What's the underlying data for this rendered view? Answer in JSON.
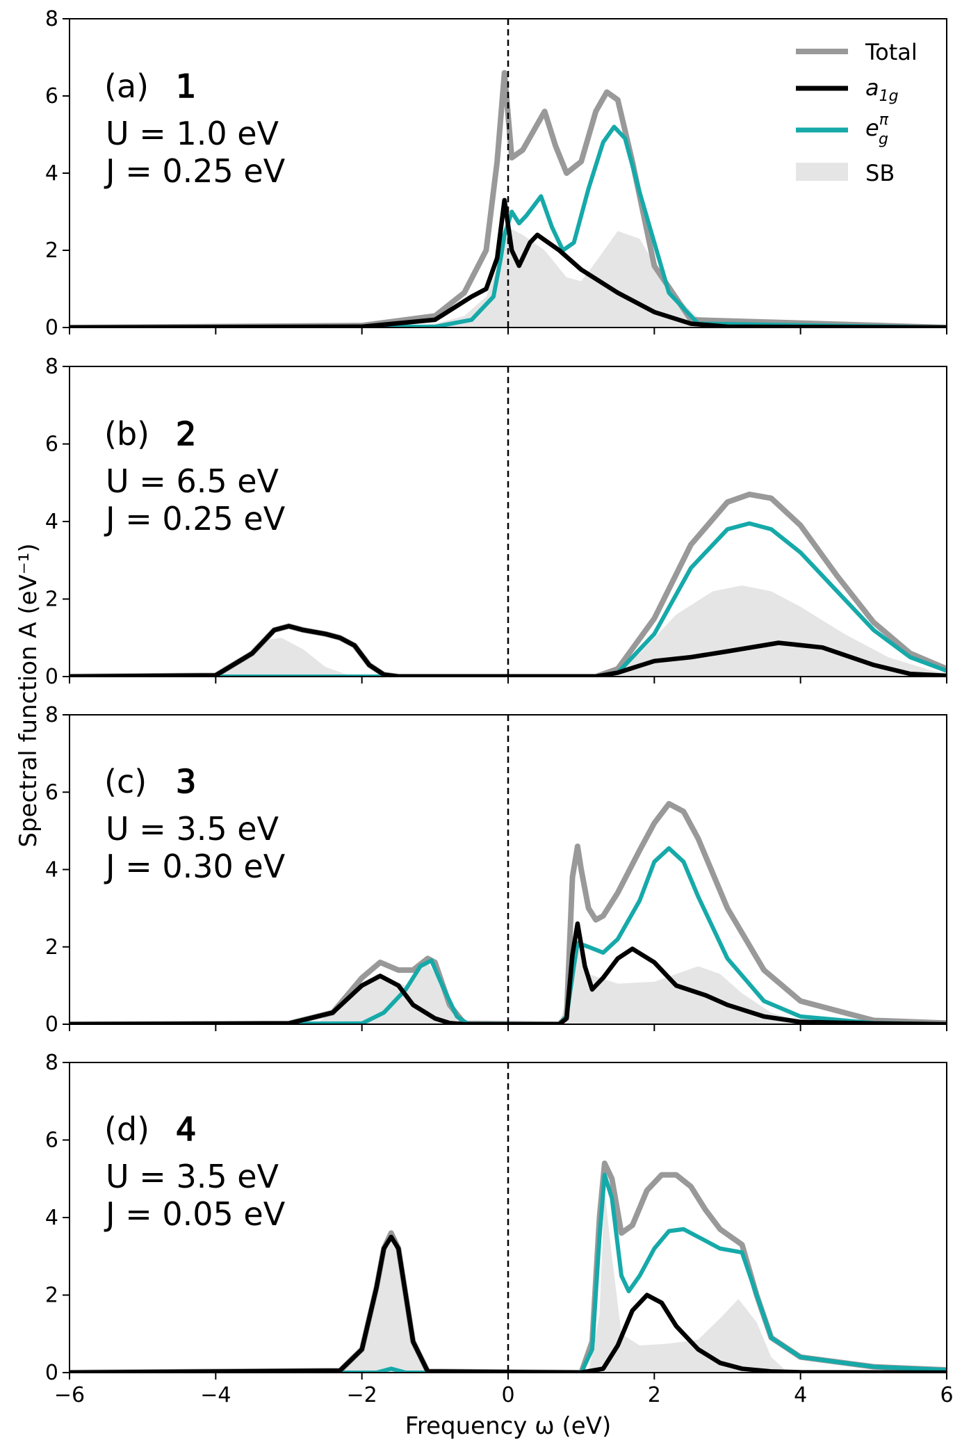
{
  "figure": {
    "xlabel": "Frequency ω (eV)",
    "ylabel": "Spectral function A (eV⁻¹)"
  },
  "legend": {
    "placement": "top-right",
    "items": [
      {
        "label": "Total",
        "color": "#999999",
        "kind": "line"
      },
      {
        "label": "a1g",
        "color": "#000000",
        "kind": "line"
      },
      {
        "label": "eπg",
        "color": "#16a9a9",
        "kind": "line"
      },
      {
        "label": "SB",
        "color": "#e5e5e5",
        "kind": "patch"
      }
    ]
  },
  "panels": [
    {
      "tag": "(a)",
      "marker": "1",
      "U_text": "U = 1.0 eV",
      "J_text": "J = 0.25 eV"
    },
    {
      "tag": "(b)",
      "marker": "2",
      "U_text": "U = 6.5 eV",
      "J_text": "J = 0.25 eV"
    },
    {
      "tag": "(c)",
      "marker": "3",
      "U_text": "U = 3.5 eV",
      "J_text": "J = 0.30 eV"
    },
    {
      "tag": "(d)",
      "marker": "4",
      "U_text": "U = 3.5 eV",
      "J_text": "J = 0.05 eV"
    }
  ],
  "chart_data": [
    {
      "type": "line",
      "title": "",
      "xlabel": "Frequency ω (eV)",
      "ylabel": "Spectral function A (eV⁻¹)",
      "xlim": [
        -6,
        6
      ],
      "ylim": [
        0,
        8
      ],
      "xticks": [
        -6,
        -4,
        -2,
        0,
        2,
        4,
        6
      ],
      "yticks": [
        0,
        2,
        4,
        6,
        8
      ],
      "vline_x": 0,
      "series": [
        {
          "name": "Total",
          "x": [
            -6,
            -2,
            -1,
            -0.6,
            -0.3,
            -0.15,
            -0.05,
            0.05,
            0.2,
            0.35,
            0.5,
            0.65,
            0.8,
            1.0,
            1.2,
            1.35,
            1.5,
            1.7,
            2.0,
            2.5,
            6
          ],
          "y": [
            0,
            0.05,
            0.3,
            0.9,
            2.0,
            4.3,
            6.6,
            4.4,
            4.6,
            5.1,
            5.6,
            4.7,
            4.0,
            4.3,
            5.6,
            6.1,
            5.9,
            4.3,
            1.6,
            0.2,
            0
          ]
        },
        {
          "name": "a1g",
          "x": [
            -6,
            -2,
            -1,
            -0.5,
            -0.3,
            -0.15,
            -0.05,
            0.05,
            0.15,
            0.3,
            0.4,
            0.7,
            1.0,
            1.5,
            2.0,
            2.5,
            3.0,
            6
          ],
          "y": [
            0,
            0.02,
            0.2,
            0.8,
            1.0,
            1.8,
            3.3,
            2.0,
            1.6,
            2.2,
            2.4,
            2.0,
            1.5,
            0.9,
            0.4,
            0.1,
            0.02,
            0
          ],
          "color": "#000000"
        },
        {
          "name": "eπg",
          "x": [
            -6,
            -1,
            -0.5,
            -0.2,
            -0.1,
            -0.05,
            0.05,
            0.15,
            0.25,
            0.45,
            0.6,
            0.75,
            0.9,
            1.1,
            1.3,
            1.45,
            1.6,
            1.8,
            2.2,
            2.6,
            6
          ],
          "y": [
            0,
            0.02,
            0.2,
            0.8,
            1.8,
            2.4,
            3.0,
            2.7,
            2.9,
            3.4,
            2.6,
            2.0,
            2.2,
            3.6,
            4.8,
            5.2,
            4.9,
            3.5,
            0.9,
            0.1,
            0
          ]
        },
        {
          "name": "SB",
          "x": [
            -6,
            -1.5,
            -1,
            -0.6,
            -0.3,
            -0.1,
            0,
            0.2,
            0.5,
            0.8,
            1.0,
            1.2,
            1.5,
            1.8,
            2.2,
            2.6,
            3.0,
            6
          ],
          "y": [
            0,
            0.02,
            0.1,
            0.3,
            0.8,
            1.8,
            2.6,
            2.4,
            2.0,
            1.3,
            1.2,
            1.7,
            2.5,
            2.3,
            1.0,
            0.25,
            0.03,
            0
          ]
        }
      ]
    },
    {
      "type": "line",
      "title": "",
      "xlim": [
        -6,
        6
      ],
      "ylim": [
        0,
        8
      ],
      "xticks": [
        -6,
        -4,
        -2,
        0,
        2,
        4,
        6
      ],
      "yticks": [
        0,
        2,
        4,
        6,
        8
      ],
      "vline_x": 0,
      "series": [
        {
          "name": "Total",
          "x": [
            -6,
            -4,
            -3.5,
            -3.2,
            -3.0,
            -2.8,
            -2.5,
            -2.3,
            -2.1,
            -1.9,
            -1.7,
            -1.5,
            1.2,
            1.5,
            2.0,
            2.5,
            3.0,
            3.3,
            3.6,
            4.0,
            4.5,
            5.0,
            5.5,
            6
          ],
          "y": [
            0,
            0.03,
            0.6,
            1.2,
            1.3,
            1.2,
            1.1,
            1.0,
            0.8,
            0.3,
            0.05,
            0,
            0,
            0.2,
            1.5,
            3.4,
            4.5,
            4.7,
            4.6,
            3.9,
            2.6,
            1.4,
            0.6,
            0.2
          ]
        },
        {
          "name": "a1g",
          "x": [
            -6,
            -4,
            -3.5,
            -3.2,
            -3.0,
            -2.8,
            -2.5,
            -2.3,
            -2.1,
            -1.9,
            -1.7,
            -1.5,
            1.2,
            1.5,
            2.0,
            2.5,
            3.0,
            3.7,
            4.3,
            5.0,
            5.5,
            6
          ],
          "y": [
            0,
            0.03,
            0.6,
            1.2,
            1.3,
            1.2,
            1.1,
            1.0,
            0.8,
            0.3,
            0.05,
            0,
            0,
            0.1,
            0.4,
            0.5,
            0.65,
            0.87,
            0.75,
            0.3,
            0.07,
            0.02
          ]
        },
        {
          "name": "eπg",
          "x": [
            -6,
            1.2,
            1.5,
            2.0,
            2.5,
            3.0,
            3.3,
            3.6,
            4.0,
            4.5,
            5.0,
            5.5,
            6
          ],
          "y": [
            0,
            0,
            0.1,
            1.1,
            2.8,
            3.8,
            3.95,
            3.8,
            3.2,
            2.2,
            1.2,
            0.5,
            0.15
          ]
        },
        {
          "name": "SB",
          "x": [
            -6,
            -4,
            -3.6,
            -3.3,
            -3.1,
            -2.8,
            -2.5,
            -2.2,
            -1.8,
            1.3,
            1.8,
            2.3,
            2.8,
            3.2,
            3.6,
            4.0,
            4.6,
            5.2,
            5.8,
            6
          ],
          "y": [
            0,
            0.02,
            0.5,
            0.95,
            1.0,
            0.7,
            0.25,
            0.05,
            0,
            0,
            0.6,
            1.6,
            2.2,
            2.35,
            2.2,
            1.8,
            1.1,
            0.5,
            0.15,
            0.1
          ]
        }
      ]
    },
    {
      "type": "line",
      "title": "",
      "xlim": [
        -6,
        6
      ],
      "ylim": [
        0,
        8
      ],
      "xticks": [
        -6,
        -4,
        -2,
        0,
        2,
        4,
        6
      ],
      "yticks": [
        0,
        2,
        4,
        6,
        8
      ],
      "vline_x": 0,
      "series": [
        {
          "name": "Total",
          "x": [
            -6,
            -3,
            -2.4,
            -2.0,
            -1.75,
            -1.5,
            -1.3,
            -1.1,
            -1.0,
            -0.8,
            -0.6,
            0.7,
            0.8,
            0.88,
            0.95,
            1.0,
            1.1,
            1.2,
            1.3,
            1.5,
            1.8,
            2.0,
            2.2,
            2.4,
            2.6,
            3.0,
            3.5,
            4.0,
            5.0,
            6
          ],
          "y": [
            0,
            0.02,
            0.3,
            1.2,
            1.6,
            1.4,
            1.4,
            1.7,
            1.6,
            0.5,
            0.02,
            0,
            0.2,
            3.8,
            4.6,
            4.0,
            3.0,
            2.7,
            2.8,
            3.4,
            4.5,
            5.2,
            5.7,
            5.5,
            4.8,
            3.0,
            1.4,
            0.6,
            0.1,
            0.03
          ]
        },
        {
          "name": "a1g",
          "x": [
            -6,
            -3,
            -2.4,
            -2.0,
            -1.75,
            -1.5,
            -1.3,
            -1.0,
            -0.8,
            -0.6,
            0.7,
            0.8,
            0.88,
            0.95,
            1.05,
            1.15,
            1.3,
            1.5,
            1.7,
            2.0,
            2.3,
            2.7,
            3.0,
            3.5,
            4.0,
            5.0,
            6
          ],
          "y": [
            0,
            0.02,
            0.3,
            1.0,
            1.25,
            1.0,
            0.5,
            0.15,
            0.03,
            0,
            0,
            0.15,
            1.8,
            2.6,
            1.5,
            0.9,
            1.2,
            1.7,
            1.95,
            1.6,
            1.0,
            0.75,
            0.5,
            0.2,
            0.06,
            0.02,
            0
          ]
        },
        {
          "name": "eπg",
          "x": [
            -6,
            -2,
            -1.7,
            -1.4,
            -1.2,
            -1.05,
            -0.9,
            -0.7,
            -0.55,
            0.7,
            0.8,
            0.9,
            0.95,
            1.1,
            1.3,
            1.5,
            1.8,
            2.0,
            2.2,
            2.4,
            2.6,
            3.0,
            3.5,
            4.0,
            5.0,
            6
          ],
          "y": [
            0,
            0.02,
            0.3,
            0.9,
            1.5,
            1.65,
            1.0,
            0.2,
            0.01,
            0,
            0.2,
            1.5,
            2.1,
            2.0,
            1.85,
            2.2,
            3.2,
            4.2,
            4.55,
            4.2,
            3.3,
            1.7,
            0.6,
            0.2,
            0.03,
            0
          ]
        },
        {
          "name": "SB",
          "x": [
            -6,
            -2.6,
            -2.2,
            -1.8,
            -1.4,
            -1.1,
            -0.9,
            -0.7,
            -0.5,
            0.7,
            0.85,
            0.95,
            1.1,
            1.5,
            2.0,
            2.3,
            2.6,
            2.9,
            3.2,
            3.6,
            4.0,
            5.0,
            6
          ],
          "y": [
            0,
            0.05,
            0.6,
            1.3,
            1.0,
            1.6,
            1.0,
            0.2,
            0,
            0,
            1.0,
            2.0,
            1.3,
            1.05,
            1.1,
            1.3,
            1.5,
            1.3,
            0.8,
            0.3,
            0.08,
            0.02,
            0
          ]
        }
      ]
    },
    {
      "type": "line",
      "title": "",
      "xlim": [
        -6,
        6
      ],
      "ylim": [
        0,
        8
      ],
      "xticks": [
        -6,
        -4,
        -2,
        0,
        2,
        4,
        6
      ],
      "yticks": [
        0,
        2,
        4,
        6,
        8
      ],
      "vline_x": 0,
      "series": [
        {
          "name": "Total",
          "x": [
            -6,
            -2.3,
            -2.0,
            -1.8,
            -1.7,
            -1.6,
            -1.5,
            -1.4,
            -1.3,
            -1.1,
            1.0,
            1.15,
            1.25,
            1.32,
            1.42,
            1.55,
            1.7,
            1.9,
            2.1,
            2.3,
            2.5,
            2.7,
            2.9,
            3.2,
            3.4,
            3.6,
            4.0,
            5.0,
            6
          ],
          "y": [
            0,
            0.05,
            0.6,
            2.2,
            3.2,
            3.6,
            3.2,
            2.0,
            0.8,
            0.03,
            0,
            0.8,
            4.0,
            5.4,
            5.0,
            3.6,
            3.8,
            4.7,
            5.1,
            5.1,
            4.8,
            4.2,
            3.7,
            3.3,
            2.0,
            0.9,
            0.4,
            0.15,
            0.07
          ]
        },
        {
          "name": "a1g",
          "x": [
            -6,
            -2.3,
            -2.0,
            -1.8,
            -1.7,
            -1.6,
            -1.5,
            -1.4,
            -1.3,
            -1.1,
            1.0,
            1.3,
            1.5,
            1.7,
            1.9,
            2.1,
            2.3,
            2.6,
            2.9,
            3.2,
            3.6,
            4.0,
            6
          ],
          "y": [
            0,
            0.05,
            0.6,
            2.2,
            3.2,
            3.5,
            3.2,
            2.0,
            0.8,
            0.03,
            0,
            0.1,
            0.7,
            1.6,
            2.0,
            1.8,
            1.2,
            0.6,
            0.25,
            0.1,
            0.03,
            0.01,
            0
          ]
        },
        {
          "name": "eπg",
          "x": [
            -6,
            -1.8,
            -1.6,
            -1.4,
            1.0,
            1.15,
            1.25,
            1.32,
            1.42,
            1.55,
            1.65,
            1.8,
            2.0,
            2.2,
            2.4,
            2.6,
            2.9,
            3.2,
            3.4,
            3.6,
            4.0,
            5.0,
            6
          ],
          "y": [
            0,
            0,
            0.1,
            0,
            0,
            0.6,
            3.5,
            5.1,
            4.5,
            2.5,
            2.1,
            2.5,
            3.2,
            3.65,
            3.7,
            3.5,
            3.2,
            3.1,
            2.0,
            0.9,
            0.4,
            0.15,
            0.07
          ]
        },
        {
          "name": "SB",
          "x": [
            -6,
            -2.3,
            -2.0,
            -1.8,
            -1.7,
            -1.6,
            -1.5,
            -1.4,
            -1.3,
            -1.1,
            1.1,
            1.25,
            1.32,
            1.42,
            1.55,
            1.8,
            2.2,
            2.6,
            2.9,
            3.15,
            3.4,
            3.6,
            3.8,
            6
          ],
          "y": [
            0,
            0.05,
            0.6,
            2.2,
            3.2,
            3.5,
            3.1,
            2.0,
            0.8,
            0.03,
            0,
            1.5,
            4.7,
            3.0,
            1.0,
            0.7,
            0.75,
            0.85,
            1.4,
            1.9,
            1.3,
            0.4,
            0.05,
            0
          ]
        }
      ]
    }
  ]
}
